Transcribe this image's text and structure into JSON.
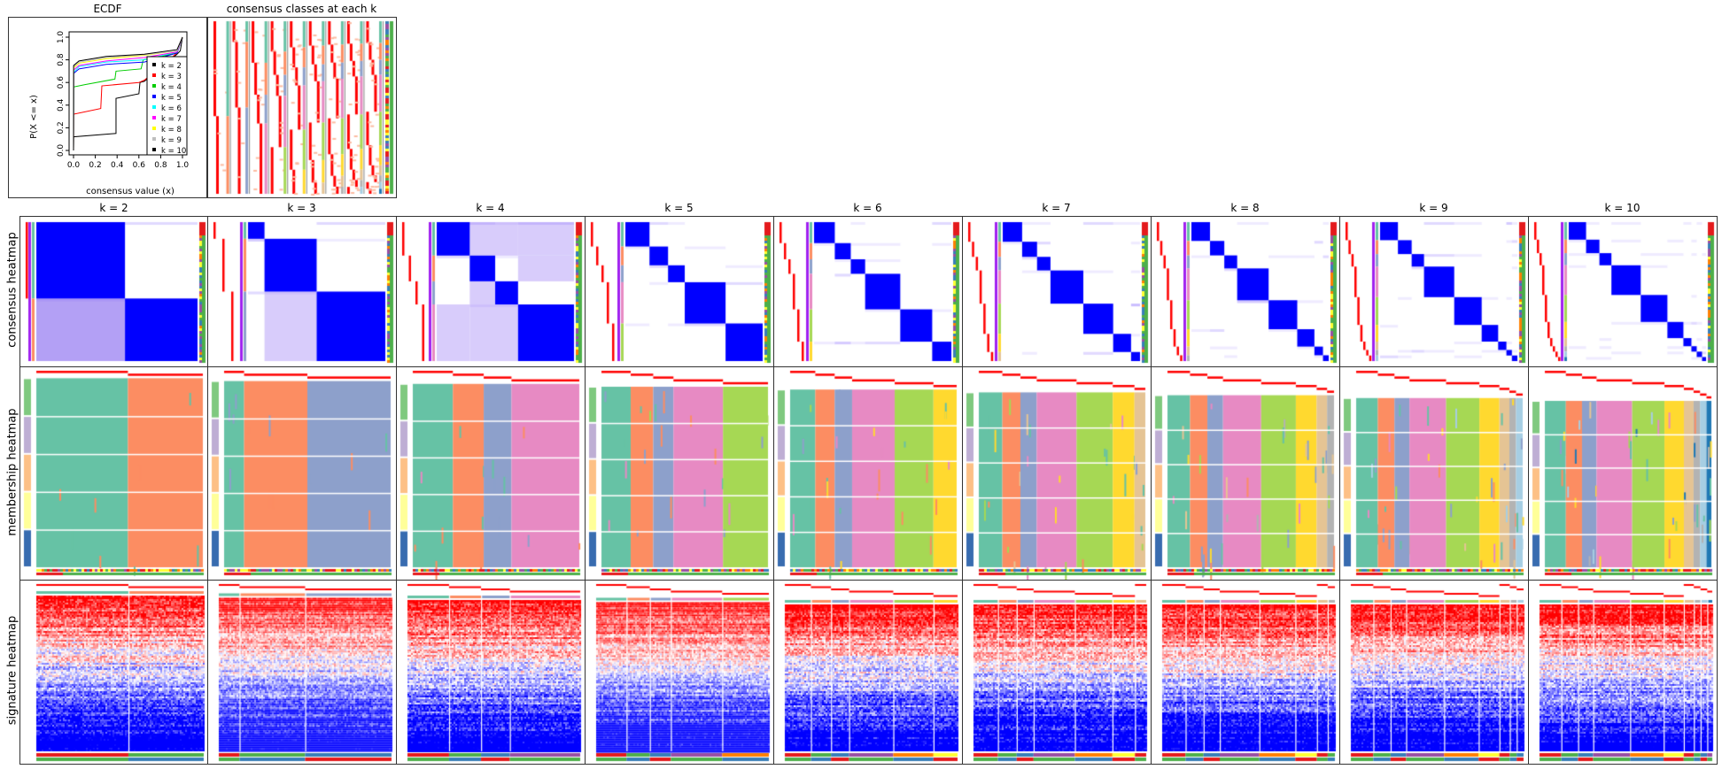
{
  "top": {
    "ecdf_title": "ECDF",
    "classes_title": "consensus classes at each k"
  },
  "row_labels": [
    "consensus heatmap",
    "membership heatmap",
    "signature heatmap"
  ],
  "k_titles": [
    "k = 2",
    "k = 3",
    "k = 4",
    "k = 5",
    "k = 6",
    "k = 7",
    "k = 8",
    "k = 9",
    "k = 10"
  ],
  "colors": {
    "consensus_high": "#0000FF",
    "silhouette": "#FF0000",
    "class_palette": [
      "#66C2A5",
      "#FC8D62",
      "#8DA0CB",
      "#E78AC3",
      "#A6D854",
      "#FFD92F",
      "#E5C494",
      "#B3B3B3",
      "#A6CEE3",
      "#1F78B4"
    ],
    "sample_group_palette": [
      "#7FC97F",
      "#BEAED4",
      "#FDC086",
      "#FFFF99",
      "#386CB0"
    ],
    "annotation_palette": [
      "#E41A1C",
      "#4DAF4A",
      "#377EB8",
      "#984EA3",
      "#FF7F00",
      "#FFFF33"
    ]
  },
  "chart_data": {
    "type": "line",
    "title": "ECDF",
    "xlabel": "consensus value (x)",
    "ylabel": "P(X <= x)",
    "xlim": [
      0,
      1
    ],
    "ylim": [
      0,
      1
    ],
    "x_ticks": [
      "0.0",
      "0.2",
      "0.4",
      "0.6",
      "0.8",
      "1.0"
    ],
    "y_ticks": [
      "0.0",
      "0.2",
      "0.4",
      "0.6",
      "0.8",
      "1.0"
    ],
    "legend_position": "bottom-right",
    "series": [
      {
        "name": "k = 2",
        "color": "#000000",
        "x": [
          0,
          0.001,
          0.39,
          0.39,
          0.6,
          0.61,
          0.65,
          0.95,
          0.98,
          1.0
        ],
        "y": [
          0,
          0.12,
          0.15,
          0.46,
          0.5,
          0.6,
          0.61,
          0.85,
          0.88,
          1.0
        ]
      },
      {
        "name": "k = 3",
        "color": "#FF0000",
        "x": [
          0,
          0.001,
          0.25,
          0.26,
          0.6,
          0.65,
          0.95,
          1.0
        ],
        "y": [
          0,
          0.32,
          0.37,
          0.57,
          0.6,
          0.62,
          0.86,
          1.0
        ]
      },
      {
        "name": "k = 4",
        "color": "#00CC00",
        "x": [
          0,
          0.001,
          0.1,
          0.38,
          0.39,
          0.62,
          0.64,
          0.95,
          1.0
        ],
        "y": [
          0,
          0.56,
          0.58,
          0.63,
          0.7,
          0.72,
          0.8,
          0.86,
          1.0
        ]
      },
      {
        "name": "k = 5",
        "color": "#0000FF",
        "x": [
          0,
          0.001,
          0.05,
          0.3,
          0.65,
          0.95,
          1.0
        ],
        "y": [
          0,
          0.68,
          0.72,
          0.76,
          0.78,
          0.86,
          1.0
        ]
      },
      {
        "name": "k = 6",
        "color": "#00FFFF",
        "x": [
          0,
          0.001,
          0.05,
          0.3,
          0.65,
          0.95,
          1.0
        ],
        "y": [
          0,
          0.69,
          0.74,
          0.78,
          0.8,
          0.87,
          1.0
        ]
      },
      {
        "name": "k = 7",
        "color": "#FF00FF",
        "x": [
          0,
          0.001,
          0.05,
          0.3,
          0.65,
          0.95,
          1.0
        ],
        "y": [
          0,
          0.71,
          0.75,
          0.79,
          0.82,
          0.87,
          1.0
        ]
      },
      {
        "name": "k = 8",
        "color": "#FFFF00",
        "x": [
          0,
          0.001,
          0.05,
          0.3,
          0.65,
          0.95,
          1.0
        ],
        "y": [
          0,
          0.73,
          0.77,
          0.81,
          0.84,
          0.88,
          1.0
        ]
      },
      {
        "name": "k = 9",
        "color": "#BEBEBE",
        "x": [
          0,
          0.001,
          0.05,
          0.3,
          0.65,
          0.95,
          1.0
        ],
        "y": [
          0,
          0.74,
          0.78,
          0.82,
          0.845,
          0.88,
          1.0
        ]
      },
      {
        "name": "k = 10",
        "color": "#000000",
        "x": [
          0,
          0.001,
          0.05,
          0.3,
          0.65,
          0.95,
          1.0
        ],
        "y": [
          0,
          0.75,
          0.79,
          0.83,
          0.85,
          0.89,
          1.0
        ]
      }
    ]
  }
}
